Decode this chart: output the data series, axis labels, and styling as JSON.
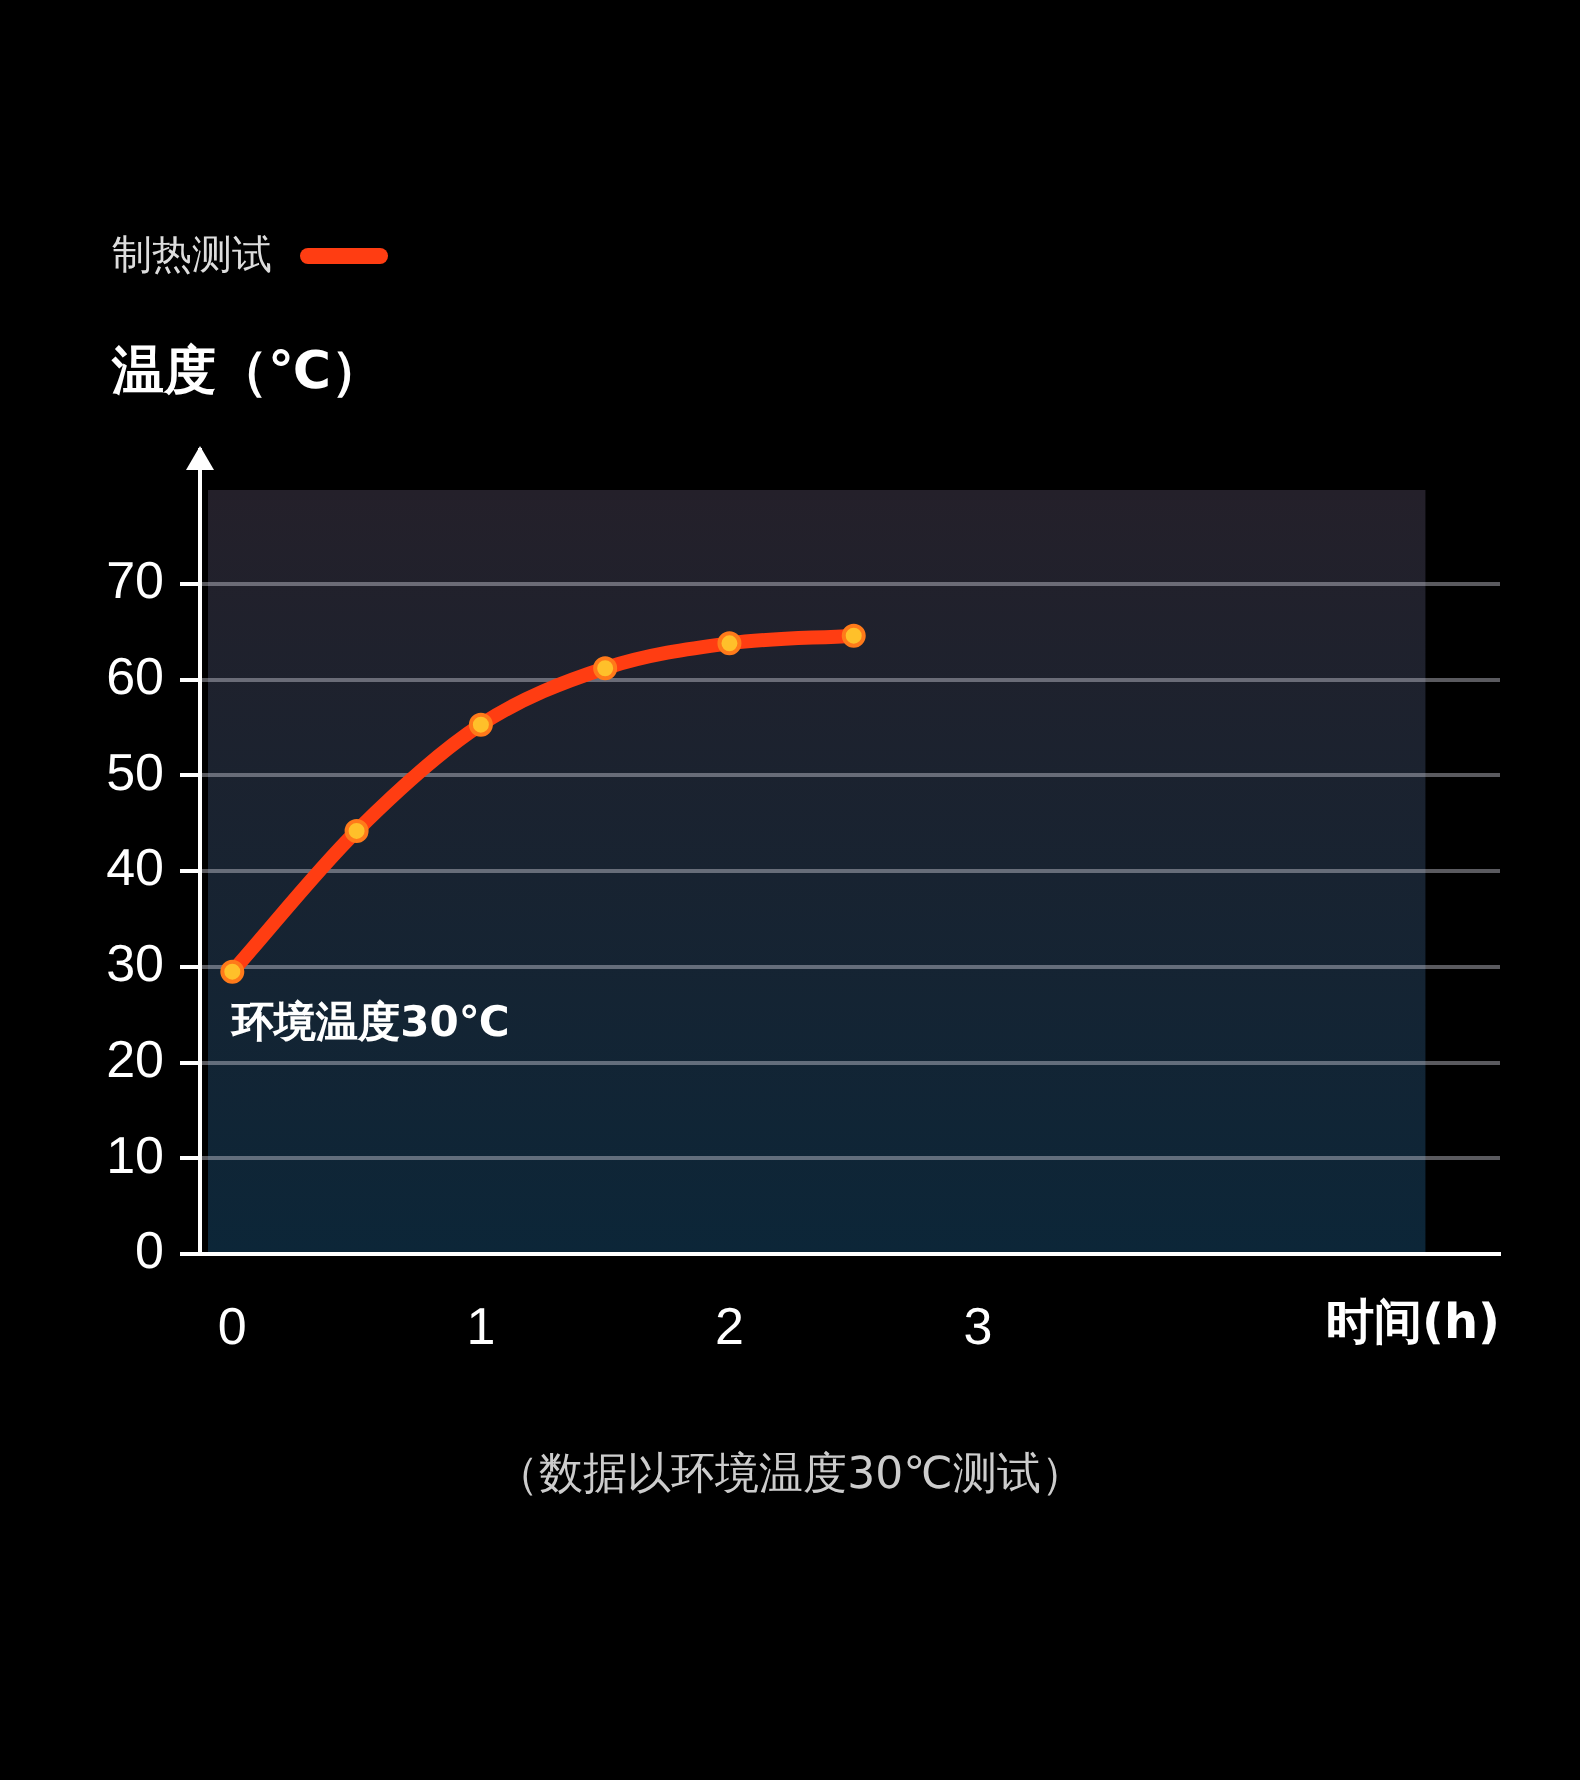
{
  "chart_data": {
    "type": "line",
    "title": "温度（℃）",
    "xlabel": "时间(h)",
    "legend": "top left",
    "grid": "y",
    "marker": "circle",
    "line_style": "solid",
    "x": [
      0,
      0.5,
      1,
      1.5,
      2,
      2.5
    ],
    "series": [
      {
        "name": "制热测试",
        "color": "#ff3d12",
        "values": [
          29.5,
          44.2,
          55.3,
          61.2,
          63.8,
          64.6
        ]
      }
    ],
    "xlim": [
      -0.13,
      5.1
    ],
    "xticks": [
      0,
      1,
      2,
      3
    ],
    "ylim": [
      0,
      84
    ],
    "yticks": [
      0,
      10,
      20,
      30,
      40,
      50,
      60,
      70
    ],
    "annotations": [
      {
        "text": "环境温度30℃",
        "x": 0,
        "y": 29.5
      },
      "（数据以环境温度30℃测试）"
    ]
  }
}
